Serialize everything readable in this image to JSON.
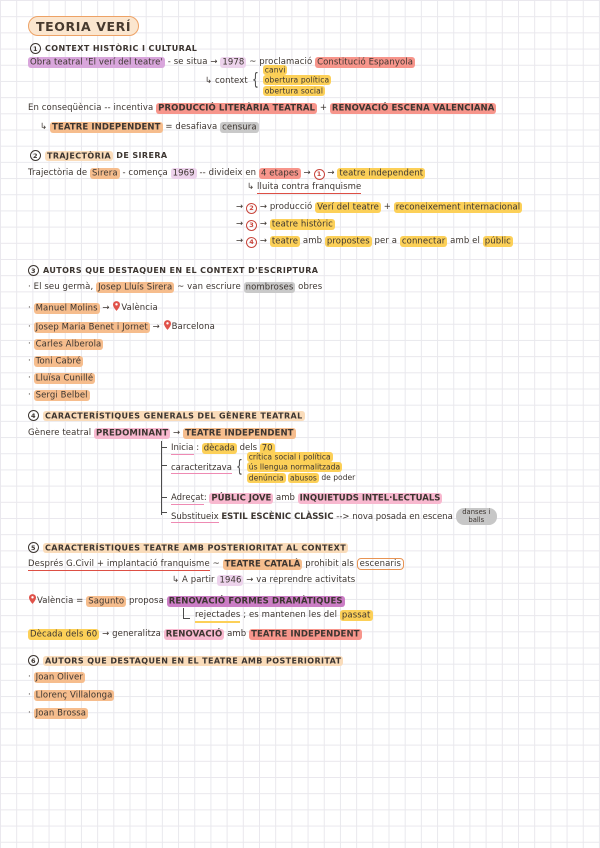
{
  "palette": {
    "highlight_orange": "#f6bd8d",
    "highlight_peach": "#fadcba",
    "highlight_yellow": "#fcd058",
    "highlight_salmon": "#f7958b",
    "highlight_pink": "#f8b8cf",
    "highlight_lilac": "#edd3ec",
    "highlight_purple": "#d9a6dc",
    "highlight_magenta": "#cb7dc5",
    "highlight_gray": "#c9c9c9",
    "underline_red": "#dd4f44",
    "underline_pink": "#ee8ab3",
    "ink": "#3c3530",
    "grid_line": "#e9e8ed",
    "title_border": "#eda266"
  },
  "title": {
    "text": "TEORIA VERÍ"
  },
  "sections": [
    {
      "number": "1",
      "header": [
        {
          "t": "CONTEXT HISTÒRIC I CULTURAL"
        }
      ],
      "line1": [
        {
          "t": "Obra teatral 'El verí del teatre'",
          "h": "purple"
        },
        {
          "t": " - se situa → "
        },
        {
          "t": "1978",
          "h": "lilac"
        },
        {
          "t": " ~ proclamació "
        },
        {
          "t": "Constitució Espanyola",
          "h": "salmon"
        }
      ],
      "context": {
        "lead": [
          {
            "t": "↳ context"
          }
        ],
        "items": [
          [
            {
              "t": "canvi",
              "h": "yellow"
            }
          ],
          [
            {
              "t": "obertura política",
              "h": "yellow"
            }
          ],
          [
            {
              "t": "obertura social",
              "h": "yellow"
            }
          ]
        ]
      },
      "line2": [
        {
          "t": "En conseqüència -- incentiva "
        },
        {
          "t": "PRODUCCIÓ LITERÀRIA TEATRAL",
          "h": "salmon",
          "b": 1
        },
        {
          "t": " + "
        },
        {
          "t": "RENOVACIÓ ESCENA VALENCIANA",
          "h": "salmon",
          "b": 1
        }
      ],
      "line3": [
        {
          "t": "↳ "
        },
        {
          "t": "TEATRE INDEPENDENT",
          "h": "orange",
          "b": 1
        },
        {
          "t": " = desafiava "
        },
        {
          "t": "censura",
          "h": "gray"
        }
      ]
    },
    {
      "number": "2",
      "header": [
        {
          "t": "TRAJECTÒRIA",
          "h": "peach"
        },
        {
          "t": " DE SIRERA"
        }
      ],
      "line1": [
        {
          "t": "Trajectòria de "
        },
        {
          "t": "Sirera",
          "h": "orange"
        },
        {
          "t": " - comença "
        },
        {
          "t": "1969",
          "h": "lilac"
        },
        {
          "t": " -- divideix en "
        },
        {
          "t": "4 etapes",
          "h": "salmon"
        },
        {
          "t": " → "
        },
        {
          "num": "1"
        },
        {
          "t": " → "
        },
        {
          "t": "teatre independent",
          "h": "yellow"
        }
      ],
      "line1_sub": [
        {
          "t": "↳ "
        },
        {
          "t": "lluita contra franquisme",
          "u": "red"
        }
      ],
      "etapes": [
        [
          {
            "t": "→ "
          },
          {
            "num": "2"
          },
          {
            "t": " → producció "
          },
          {
            "t": "Verí del teatre",
            "h": "yellow"
          },
          {
            "t": " + "
          },
          {
            "t": "reconeixement internacional",
            "h": "yellow"
          }
        ],
        [
          {
            "t": "→ "
          },
          {
            "num": "3"
          },
          {
            "t": " → "
          },
          {
            "t": "teatre històric",
            "h": "yellow"
          }
        ],
        [
          {
            "t": "→ "
          },
          {
            "num": "4"
          },
          {
            "t": " → "
          },
          {
            "t": "teatre",
            "h": "yellow"
          },
          {
            "t": " amb "
          },
          {
            "t": "propostes",
            "h": "yellow"
          },
          {
            "t": " per a "
          },
          {
            "t": "connectar",
            "h": "yellow"
          },
          {
            "t": " amb el "
          },
          {
            "t": "públic",
            "h": "yellow"
          }
        ]
      ]
    },
    {
      "number": "3",
      "header": [
        {
          "t": "AUTORS QUE DESTAQUEN EN EL CONTEXT D'ESCRIPTURA"
        }
      ],
      "bullets": [
        [
          {
            "t": "· El seu germà, "
          },
          {
            "t": "Josep Lluís Sirera",
            "h": "orange"
          },
          {
            "t": " ~ van escriure "
          },
          {
            "t": "nombroses",
            "h": "gray"
          },
          {
            "t": " obres"
          }
        ],
        [
          {
            "t": "· "
          },
          {
            "t": "Manuel Molins",
            "h": "orange"
          },
          {
            "t": " → "
          },
          {
            "icon": "location-pin"
          },
          {
            "t": "València"
          }
        ],
        [
          {
            "t": "· "
          },
          {
            "t": "Josep Maria Benet i Jornet",
            "h": "orange"
          },
          {
            "t": " → "
          },
          {
            "icon": "location-pin"
          },
          {
            "t": "Barcelona"
          }
        ],
        [
          {
            "t": "· "
          },
          {
            "t": "Carles Alberola",
            "h": "orange"
          }
        ],
        [
          {
            "t": "· "
          },
          {
            "t": "Toni Cabré",
            "h": "orange"
          }
        ],
        [
          {
            "t": "· "
          },
          {
            "t": "Lluïsa Cunillé",
            "h": "orange"
          }
        ],
        [
          {
            "t": "· "
          },
          {
            "t": "Sergi Belbel",
            "h": "orange"
          }
        ]
      ]
    },
    {
      "number": "4",
      "header": [
        {
          "t": "CARACTERÍSTIQUES GENERALS DEL GÈNERE TEATRAL",
          "h": "peach"
        }
      ],
      "line1": [
        {
          "t": "Gènere teatral "
        },
        {
          "t": "PREDOMINANT",
          "h": "pink",
          "b": 1
        },
        {
          "t": " → "
        },
        {
          "t": "TEATRE INDEPENDENT",
          "h": "orange",
          "b": 1
        }
      ],
      "inicia": [
        {
          "t": "Inicia",
          "u": "pink"
        },
        {
          "t": " : "
        },
        {
          "t": "dècada",
          "h": "yellow"
        },
        {
          "t": " dels "
        },
        {
          "t": "70",
          "h": "yellow"
        }
      ],
      "caracteritzava": {
        "lead": [
          {
            "t": "caracteritzava",
            "u": "pink"
          }
        ],
        "items": [
          [
            {
              "t": "crítica social i política",
              "h": "yellow"
            }
          ],
          [
            {
              "t": "ús llengua normalitzada",
              "h": "yellow"
            }
          ],
          [
            {
              "t": "denúncia",
              "h": "yellow"
            },
            {
              "t": " "
            },
            {
              "t": "abusos",
              "h": "yellow"
            },
            {
              "t": " de poder"
            }
          ]
        ]
      },
      "adrecat": [
        {
          "t": "Adreçat",
          "u": "pink"
        },
        {
          "t": ": "
        },
        {
          "t": "PÚBLIC JOVE",
          "h": "pink",
          "b": 1
        },
        {
          "t": " amb "
        },
        {
          "t": "INQUIETUDS INTEL·LECTUALS",
          "h": "pink",
          "b": 1
        }
      ],
      "substitueix": [
        {
          "t": "Substitueix",
          "u": "pink"
        },
        {
          "t": " "
        },
        {
          "t": "ESTIL ESCÈNIC CLÀSSIC",
          "b": 1
        },
        {
          "t": "  --> nova posada en escena"
        }
      ],
      "substitueix_bubble": "danses i balls"
    },
    {
      "number": "5",
      "header": [
        {
          "t": "CARACTERÍSTIQUES TEATRE AMB POSTERIORITAT AL CONTEXT",
          "h": "peach"
        }
      ],
      "line1": [
        {
          "t": "Després G.Civil + implantació franquisme",
          "u": "red"
        },
        {
          "t": " ~ "
        },
        {
          "t": "TEATRE CATALÀ",
          "h": "orange",
          "b": 1
        },
        {
          "t": " prohibit als "
        },
        {
          "t": "escenaris",
          "box": "orange"
        }
      ],
      "line1_sub": [
        {
          "t": "↳ A partir "
        },
        {
          "t": "1946",
          "h": "lilac"
        },
        {
          "t": " → va reprendre activitats"
        }
      ],
      "line2": [
        {
          "icon": "location-pin"
        },
        {
          "t": "València = "
        },
        {
          "t": "Sagunto",
          "h": "orange"
        },
        {
          "t": " proposa "
        },
        {
          "t": "RENOVACIÓ FORMES DRAMÀTIQUES",
          "h": "magenta",
          "b": 1
        }
      ],
      "line2_sub": [
        {
          "t": "rejectades",
          "u": "yellow"
        },
        {
          "t": " ; es mantenen les del "
        },
        {
          "t": "passat",
          "h": "yellow"
        }
      ],
      "line3": [
        {
          "t": "Dècada dels 60",
          "h": "yellow"
        },
        {
          "t": " → generalitza "
        },
        {
          "t": "RENOVACIÓ",
          "h": "pink",
          "b": 1
        },
        {
          "t": " amb "
        },
        {
          "t": "TEATRE INDEPENDENT",
          "h": "salmon",
          "b": 1
        }
      ]
    },
    {
      "number": "6",
      "header": [
        {
          "t": "AUTORS QUE DESTAQUEN EN EL TEATRE AMB POSTERIORITAT",
          "h": "peach"
        }
      ],
      "bullets": [
        [
          {
            "t": "· "
          },
          {
            "t": "Joan Oliver",
            "h": "orange"
          }
        ],
        [
          {
            "t": "· "
          },
          {
            "t": "Llorenç Villalonga",
            "h": "orange"
          }
        ],
        [
          {
            "t": "· "
          },
          {
            "t": "Joan Brossa",
            "h": "orange"
          }
        ]
      ]
    }
  ]
}
